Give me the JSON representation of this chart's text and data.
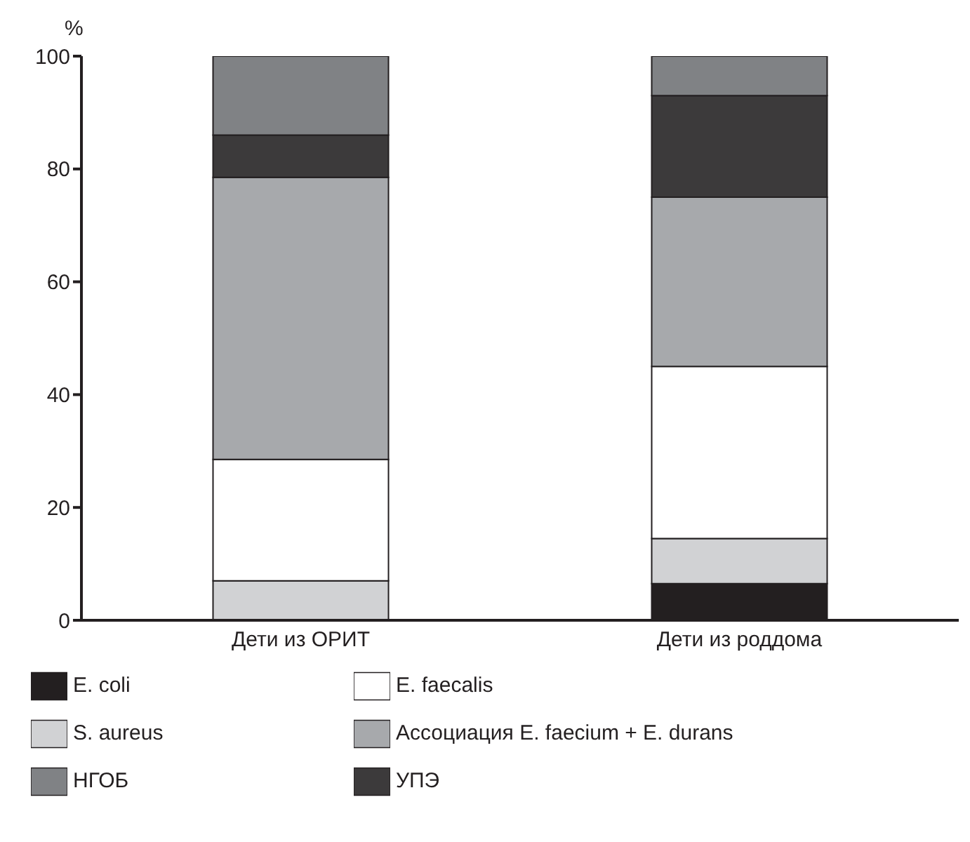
{
  "chart_data": {
    "type": "bar",
    "stacked": true,
    "ylabel": "%",
    "categories": [
      "Дети из ОРИТ",
      "Дети из роддома"
    ],
    "series": [
      {
        "name": "E. coli",
        "color": "#231f20",
        "values": [
          0,
          6.5
        ]
      },
      {
        "name": "S. aureus",
        "color": "#d1d2d4",
        "values": [
          7,
          8
        ]
      },
      {
        "name": "E. faecalis",
        "color": "#ffffff",
        "values": [
          21.5,
          30.5
        ]
      },
      {
        "name": "Ассоциация E. faecium + E. durans",
        "color": "#a7a9ac",
        "values": [
          50,
          30
        ]
      },
      {
        "name": "УПЭ",
        "color": "#3c3a3b",
        "values": [
          7.5,
          18
        ]
      },
      {
        "name": "НГОБ",
        "color": "#808285",
        "values": [
          14,
          7
        ]
      }
    ],
    "ylim": [
      0,
      100
    ],
    "yticks": [
      0,
      20,
      40,
      60,
      80,
      100
    ],
    "grid": false,
    "legend": "bottom"
  }
}
